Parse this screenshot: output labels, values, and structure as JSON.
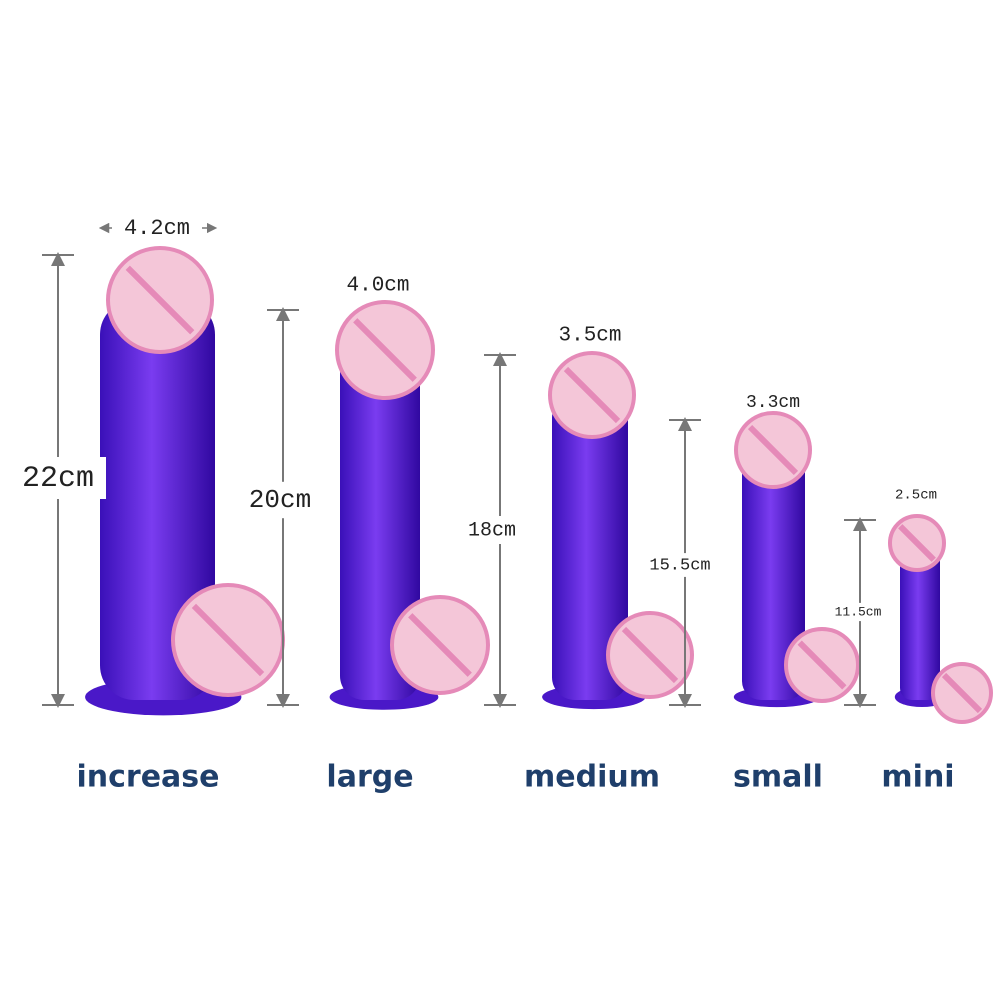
{
  "items": [
    {
      "name": "increase",
      "length": "22cm",
      "width": "4.2cm"
    },
    {
      "name": "large",
      "length": "20cm",
      "width": "4.0cm"
    },
    {
      "name": "medium",
      "length": "18cm",
      "width": "3.5cm"
    },
    {
      "name": "small",
      "length": "15.5cm",
      "width": "3.3cm"
    },
    {
      "name": "mini",
      "length": "11.5cm",
      "width": "2.5cm"
    }
  ]
}
